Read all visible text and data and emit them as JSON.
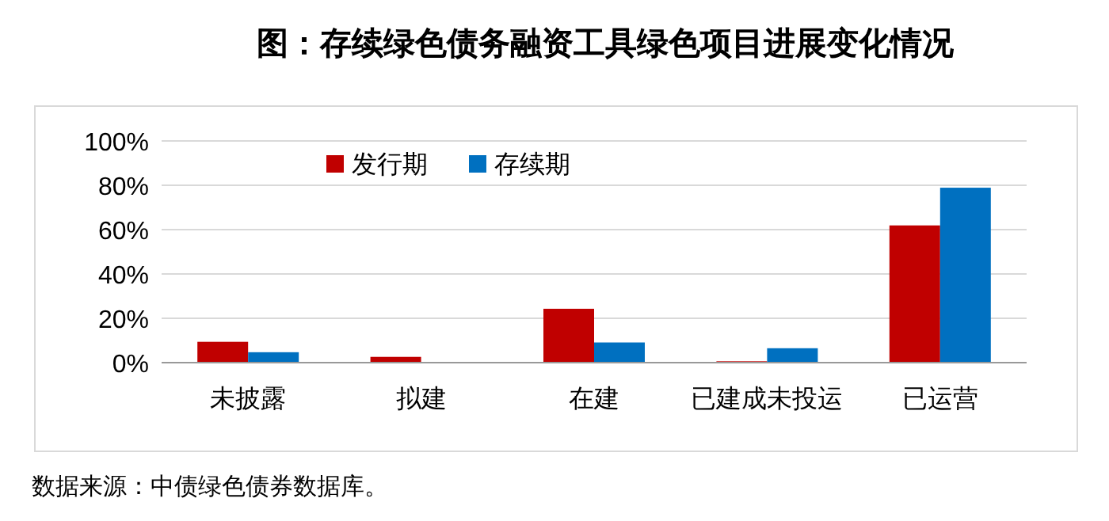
{
  "chart_data": {
    "type": "bar",
    "title": "图：存续绿色债务融资工具绿色项目进展变化情况",
    "categories": [
      "未披露",
      "拟建",
      "在建",
      "已建成未投运",
      "已运营"
    ],
    "series": [
      {
        "name": "发行期",
        "color": "#c00000",
        "values": [
          9.4,
          2.6,
          24.3,
          0.6,
          61.9
        ]
      },
      {
        "name": "存续期",
        "color": "#0070c0",
        "values": [
          4.7,
          0,
          9.1,
          6.5,
          78.9
        ]
      }
    ],
    "ylim": [
      0,
      100
    ],
    "yticks": [
      {
        "value": 0,
        "label": "0%"
      },
      {
        "value": 20,
        "label": "20%"
      },
      {
        "value": 40,
        "label": "40%"
      },
      {
        "value": 60,
        "label": "60%"
      },
      {
        "value": 80,
        "label": "80%"
      },
      {
        "value": 100,
        "label": "100%"
      }
    ],
    "grid": "y",
    "legend": "top left",
    "annotations": [
      "数据来源：中债绿色债券数据库。"
    ]
  }
}
